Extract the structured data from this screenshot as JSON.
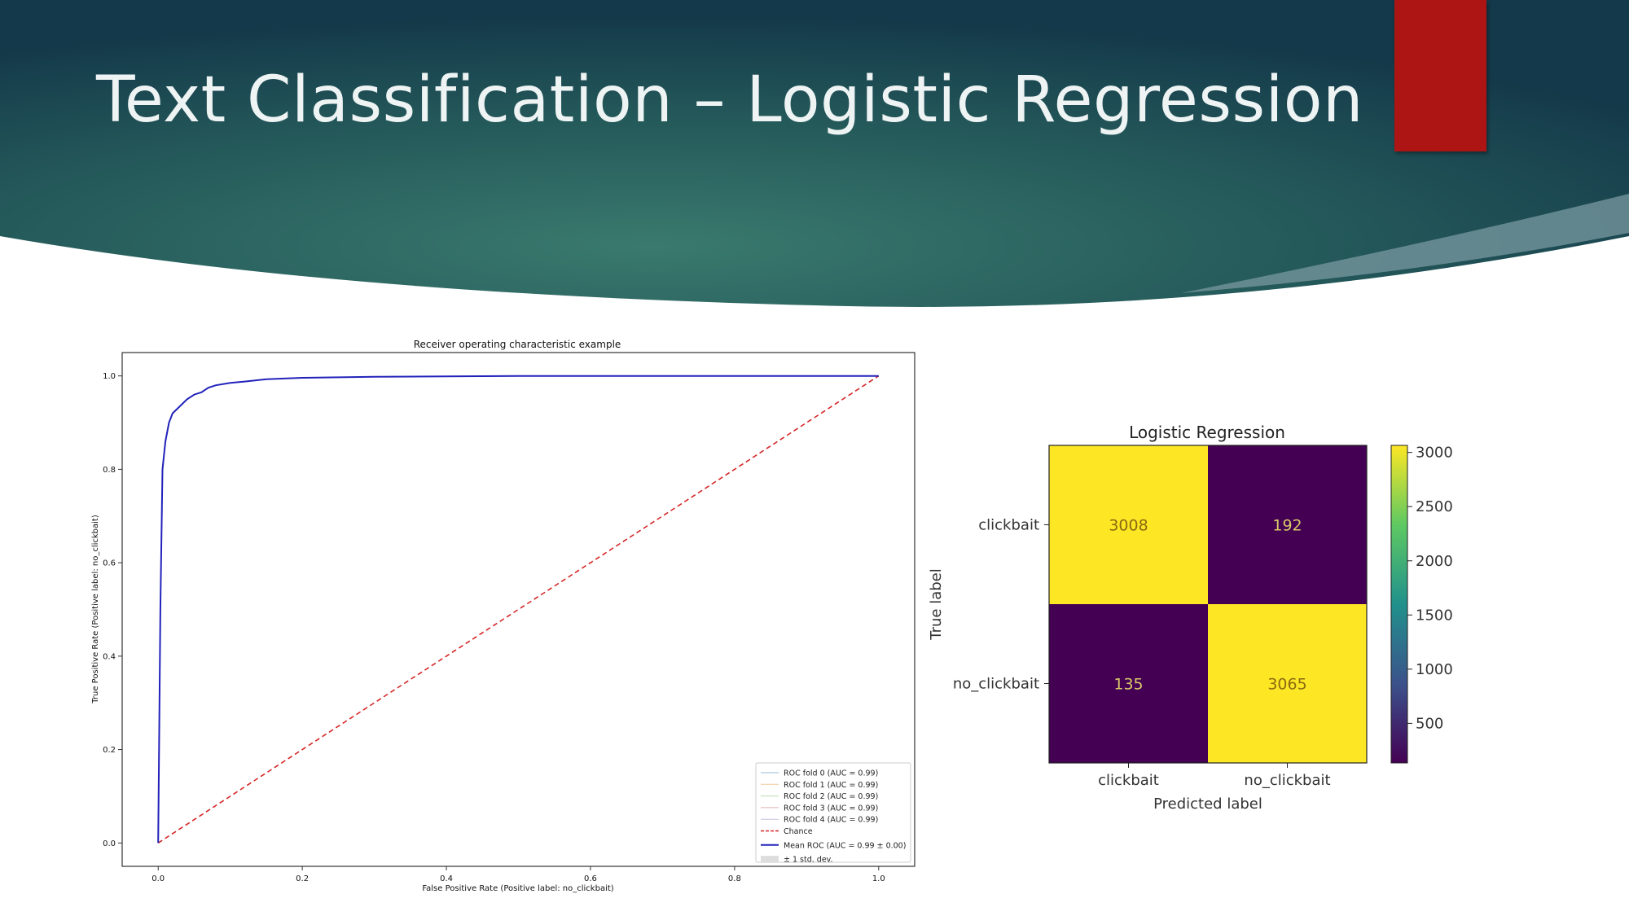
{
  "slide": {
    "title": "Text Classification – Logistic Regression",
    "colors": {
      "banner_dark": "#14394a",
      "banner_light": "#3a7a6e",
      "accent_red": "#ad1414"
    }
  },
  "chart_data": [
    {
      "type": "line",
      "title": "Receiver operating characteristic example",
      "xlabel": "False Positive Rate (Positive label: no_clickbait)",
      "ylabel": "True Positive Rate (Positive label: no_clickbait)",
      "xlim": [
        -0.05,
        1.05
      ],
      "ylim": [
        -0.05,
        1.05
      ],
      "xticks": [
        "0.0",
        "0.2",
        "0.4",
        "0.6",
        "0.8",
        "1.0"
      ],
      "yticks": [
        "0.0",
        "0.2",
        "0.4",
        "0.6",
        "0.8",
        "1.0"
      ],
      "grid": false,
      "legend_position": "lower-right",
      "legend": [
        "ROC fold 0 (AUC = 0.99)",
        "ROC fold 1 (AUC = 0.99)",
        "ROC fold 2 (AUC = 0.99)",
        "ROC fold 3 (AUC = 0.99)",
        "ROC fold 4 (AUC = 0.99)",
        "Chance",
        "Mean ROC (AUC = 0.99 ± 0.00)",
        "± 1 std. dev."
      ],
      "series": [
        {
          "color": "#2222bb",
          "x": [
            0.0,
            0.003,
            0.006,
            0.01,
            0.015,
            0.02,
            0.03,
            0.04,
            0.05,
            0.06,
            0.07,
            0.08,
            0.1,
            0.12,
            0.15,
            0.2,
            0.3,
            0.4,
            0.5,
            0.7,
            1.0
          ],
          "y": [
            0.0,
            0.5,
            0.8,
            0.86,
            0.9,
            0.92,
            0.935,
            0.95,
            0.96,
            0.965,
            0.975,
            0.98,
            0.985,
            0.988,
            0.993,
            0.996,
            0.998,
            0.999,
            1.0,
            1.0,
            1.0
          ]
        },
        {
          "color": "#d62728",
          "dashed": true,
          "x": [
            0,
            1
          ],
          "y": [
            0,
            1
          ]
        }
      ]
    },
    {
      "type": "heatmap",
      "title": "Logistic Regression",
      "xlabel": "Predicted label",
      "ylabel": "True label",
      "x_categories": [
        "clickbait",
        "no_clickbait"
      ],
      "y_categories": [
        "clickbait",
        "no_clickbait"
      ],
      "values": [
        [
          3008,
          192
        ],
        [
          135,
          3065
        ]
      ],
      "colorbar_ticks": [
        "500",
        "1000",
        "1500",
        "2000",
        "2500",
        "3000"
      ],
      "colormap": "viridis"
    }
  ]
}
